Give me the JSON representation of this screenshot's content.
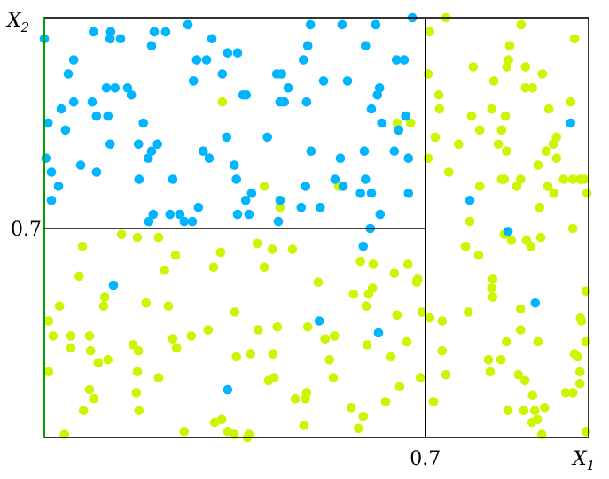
{
  "chart_data": {
    "type": "scatter",
    "title": "",
    "xlabel": "X",
    "xlabel_sub": "1",
    "ylabel": "X",
    "ylabel_sub": "2",
    "xlim": [
      0,
      1
    ],
    "ylim": [
      0,
      1
    ],
    "grid": false,
    "x_ticks": [
      {
        "value": 0.7,
        "label": "0.7"
      }
    ],
    "y_ticks": [
      {
        "value": 0.7,
        "label": "0.7"
      }
    ],
    "splits": [
      {
        "axis": "x",
        "value": 0.7,
        "from": 0,
        "to": 1
      },
      {
        "axis": "y",
        "value": 0.7,
        "from": 0,
        "to": 0.7
      }
    ],
    "colors": {
      "axis_left": "#00a000",
      "frame": "#000000",
      "split": "#000000"
    },
    "series": [
      {
        "color": "#ccf500",
        "points": [
          [
            0.327,
            0.88
          ],
          [
            0.404,
            0.76
          ],
          [
            0.433,
            0.73
          ],
          [
            0.541,
            0.76
          ],
          [
            0.648,
            0.85
          ],
          [
            0.673,
            0.85
          ],
          [
            0.07,
            0.64
          ],
          [
            0.142,
            0.68
          ],
          [
            0.171,
            0.67
          ],
          [
            0.21,
            0.67
          ],
          [
            0.241,
            0.61
          ],
          [
            0.221,
            0.56
          ],
          [
            0.324,
            0.62
          ],
          [
            0.311,
            0.57
          ],
          [
            0.391,
            0.65
          ],
          [
            0.419,
            0.63
          ],
          [
            0.456,
            0.63
          ],
          [
            0.404,
            0.57
          ],
          [
            0.064,
            0.54
          ],
          [
            0.111,
            0.47
          ],
          [
            0.109,
            0.44
          ],
          [
            0.028,
            0.44
          ],
          [
            0.187,
            0.45
          ],
          [
            0.228,
            0.44
          ],
          [
            0.35,
            0.42
          ],
          [
            0.503,
            0.52
          ],
          [
            0.581,
            0.59
          ],
          [
            0.604,
            0.58
          ],
          [
            0.643,
            0.55
          ],
          [
            0.668,
            0.58
          ],
          [
            0.686,
            0.53
          ],
          [
            0.684,
            0.52
          ],
          [
            0.568,
            0.48
          ],
          [
            0.596,
            0.48
          ],
          [
            0.603,
            0.5
          ],
          [
            0.591,
            0.44
          ],
          [
            0.648,
            0.41
          ],
          [
            0.694,
            0.42
          ],
          [
            0.008,
            0.39
          ],
          [
            0.016,
            0.34
          ],
          [
            0.049,
            0.34
          ],
          [
            0.083,
            0.34
          ],
          [
            0.049,
            0.3
          ],
          [
            0.085,
            0.29
          ],
          [
            0.236,
            0.33
          ],
          [
            0.27,
            0.34
          ],
          [
            0.301,
            0.36
          ],
          [
            0.393,
            0.36
          ],
          [
            0.428,
            0.37
          ],
          [
            0.484,
            0.37
          ],
          [
            0.516,
            0.33
          ],
          [
            0.533,
            0.34
          ],
          [
            0.593,
            0.31
          ],
          [
            0.666,
            0.32
          ],
          [
            0.163,
            0.31
          ],
          [
            0.173,
            0.29
          ],
          [
            0.243,
            0.3
          ],
          [
            0.099,
            0.25
          ],
          [
            0.117,
            0.26
          ],
          [
            0.353,
            0.27
          ],
          [
            0.379,
            0.28
          ],
          [
            0.42,
            0.28
          ],
          [
            0.524,
            0.26
          ],
          [
            0.637,
            0.27
          ],
          [
            0.008,
            0.22
          ],
          [
            0.171,
            0.22
          ],
          [
            0.21,
            0.2
          ],
          [
            0.412,
            0.19
          ],
          [
            0.422,
            0.2
          ],
          [
            0.531,
            0.2
          ],
          [
            0.691,
            0.2
          ],
          [
            0.083,
            0.16
          ],
          [
            0.091,
            0.13
          ],
          [
            0.169,
            0.15
          ],
          [
            0.482,
            0.15
          ],
          [
            0.48,
            0.13
          ],
          [
            0.461,
            0.13
          ],
          [
            0.653,
            0.17
          ],
          [
            0.072,
            0.09
          ],
          [
            0.174,
            0.09
          ],
          [
            0.564,
            0.1
          ],
          [
            0.586,
            0.07
          ],
          [
            0.627,
            0.12
          ],
          [
            0.313,
            0.05
          ],
          [
            0.326,
            0.06
          ],
          [
            0.477,
            0.04
          ],
          [
            0.577,
            0.03
          ],
          [
            0.037,
            0.01
          ],
          [
            0.257,
            0.02
          ],
          [
            0.337,
            0.02
          ],
          [
            0.349,
            0.01
          ],
          [
            0.376,
            0.01
          ],
          [
            0.373,
            0.0
          ],
          [
            0.738,
            1.0
          ],
          [
            0.876,
            0.99
          ],
          [
            0.708,
            0.98
          ],
          [
            0.974,
            0.97
          ],
          [
            0.855,
            0.96
          ],
          [
            0.788,
            0.93
          ],
          [
            0.85,
            0.93
          ],
          [
            0.853,
            0.94
          ],
          [
            0.884,
            0.93
          ],
          [
            0.915,
            0.92
          ],
          [
            0.826,
            0.91
          ],
          [
            0.884,
            0.9
          ],
          [
            0.897,
            0.9
          ],
          [
            0.705,
            0.92
          ],
          [
            0.725,
            0.89
          ],
          [
            0.726,
            0.87
          ],
          [
            0.822,
            0.87
          ],
          [
            0.785,
            0.86
          ],
          [
            0.847,
            0.86
          ],
          [
            0.927,
            0.87
          ],
          [
            0.967,
            0.88
          ],
          [
            0.718,
            0.83
          ],
          [
            0.8,
            0.84
          ],
          [
            0.84,
            0.84
          ],
          [
            0.761,
            0.82
          ],
          [
            0.834,
            0.82
          ],
          [
            0.849,
            0.81
          ],
          [
            0.941,
            0.83
          ],
          [
            0.935,
            0.82
          ],
          [
            0.922,
            0.81
          ],
          [
            0.941,
            0.8
          ],
          [
            0.907,
            0.79
          ],
          [
            0.705,
            0.8
          ],
          [
            0.743,
            0.78
          ],
          [
            0.8,
            0.76
          ],
          [
            0.84,
            0.77
          ],
          [
            0.845,
            0.77
          ],
          [
            0.875,
            0.77
          ],
          [
            0.868,
            0.76
          ],
          [
            0.925,
            0.76
          ],
          [
            0.936,
            0.75
          ],
          [
            0.954,
            0.77
          ],
          [
            0.971,
            0.77
          ],
          [
            0.984,
            0.77
          ],
          [
            0.992,
            0.77
          ],
          [
            0.997,
            0.75
          ],
          [
            0.91,
            0.73
          ],
          [
            0.782,
            0.71
          ],
          [
            0.971,
            0.7
          ],
          [
            0.845,
            0.68
          ],
          [
            0.858,
            0.66
          ],
          [
            0.886,
            0.66
          ],
          [
            0.894,
            0.64
          ],
          [
            0.912,
            0.67
          ],
          [
            0.774,
            0.64
          ],
          [
            0.798,
            0.61
          ],
          [
            0.824,
            0.53
          ],
          [
            0.822,
            0.5
          ],
          [
            0.824,
            0.47
          ],
          [
            0.779,
            0.42
          ],
          [
            0.708,
            0.4
          ],
          [
            0.731,
            0.39
          ],
          [
            0.875,
            0.43
          ],
          [
            0.995,
            0.49
          ],
          [
            0.985,
            0.4
          ],
          [
            0.987,
            0.39
          ],
          [
            0.875,
            0.36
          ],
          [
            0.995,
            0.32
          ],
          [
            0.731,
            0.29
          ],
          [
            0.849,
            0.32
          ],
          [
            0.907,
            0.32
          ],
          [
            0.816,
            0.26
          ],
          [
            0.839,
            0.26
          ],
          [
            0.738,
            0.21
          ],
          [
            0.819,
            0.22
          ],
          [
            0.871,
            0.21
          ],
          [
            0.883,
            0.19
          ],
          [
            0.974,
            0.28
          ],
          [
            0.98,
            0.27
          ],
          [
            0.984,
            0.22
          ],
          [
            0.984,
            0.18
          ],
          [
            0.958,
            0.15
          ],
          [
            0.971,
            0.15
          ],
          [
            0.897,
            0.14
          ],
          [
            0.715,
            0.12
          ],
          [
            0.852,
            0.09
          ],
          [
            0.881,
            0.09
          ],
          [
            0.901,
            0.09
          ],
          [
            0.919,
            0.1
          ],
          [
            0.906,
            0.06
          ],
          [
            0.896,
            0.05
          ],
          [
            0.914,
            0.01
          ],
          [
            0.995,
            0.02
          ]
        ]
      },
      {
        "color": "#00b4ff",
        "points": [
          [
            0.0,
            0.97
          ],
          [
            0.09,
            0.98
          ],
          [
            0.122,
            0.98
          ],
          [
            0.121,
            0.97
          ],
          [
            0.14,
            0.97
          ],
          [
            0.202,
            0.98
          ],
          [
            0.223,
            0.98
          ],
          [
            0.197,
            0.96
          ],
          [
            0.264,
            0.99
          ],
          [
            0.308,
            0.97
          ],
          [
            0.337,
            0.95
          ],
          [
            0.355,
            0.95
          ],
          [
            0.28,
            0.94
          ],
          [
            0.298,
            0.94
          ],
          [
            0.327,
            0.92
          ],
          [
            0.274,
            0.91
          ],
          [
            0.489,
            0.99
          ],
          [
            0.547,
            0.99
          ],
          [
            0.609,
            0.99
          ],
          [
            0.676,
            1.0
          ],
          [
            0.484,
            0.96
          ],
          [
            0.476,
            0.94
          ],
          [
            0.59,
            0.96
          ],
          [
            0.647,
            0.94
          ],
          [
            0.661,
            0.94
          ],
          [
            0.054,
            0.94
          ],
          [
            0.044,
            0.92
          ],
          [
            0.114,
            0.9
          ],
          [
            0.13,
            0.9
          ],
          [
            0.153,
            0.9
          ],
          [
            0.16,
            0.89
          ],
          [
            0.427,
            0.92
          ],
          [
            0.436,
            0.92
          ],
          [
            0.448,
            0.9
          ],
          [
            0.513,
            0.91
          ],
          [
            0.557,
            0.91
          ],
          [
            0.616,
            0.9
          ],
          [
            0.612,
            0.89
          ],
          [
            0.031,
            0.87
          ],
          [
            0.054,
            0.88
          ],
          [
            0.088,
            0.88
          ],
          [
            0.096,
            0.86
          ],
          [
            0.117,
            0.86
          ],
          [
            0.007,
            0.85
          ],
          [
            0.039,
            0.84
          ],
          [
            0.182,
            0.85
          ],
          [
            0.365,
            0.89
          ],
          [
            0.371,
            0.89
          ],
          [
            0.433,
            0.88
          ],
          [
            0.441,
            0.88
          ],
          [
            0.482,
            0.88
          ],
          [
            0.601,
            0.87
          ],
          [
            0.664,
            0.86
          ],
          [
            0.62,
            0.85
          ],
          [
            0.651,
            0.84
          ],
          [
            0.121,
            0.82
          ],
          [
            0.173,
            0.82
          ],
          [
            0.197,
            0.81
          ],
          [
            0.191,
            0.8
          ],
          [
            0.208,
            0.82
          ],
          [
            0.335,
            0.83
          ],
          [
            0.41,
            0.83
          ],
          [
            0.49,
            0.81
          ],
          [
            0.588,
            0.81
          ],
          [
            0.643,
            0.81
          ],
          [
            0.669,
            0.8
          ],
          [
            0.544,
            0.8
          ],
          [
            0.003,
            0.8
          ],
          [
            0.013,
            0.78
          ],
          [
            0.067,
            0.79
          ],
          [
            0.096,
            0.78
          ],
          [
            0.292,
            0.81
          ],
          [
            0.303,
            0.8
          ],
          [
            0.349,
            0.79
          ],
          [
            0.236,
            0.77
          ],
          [
            0.174,
            0.77
          ],
          [
            0.353,
            0.77
          ],
          [
            0.026,
            0.76
          ],
          [
            0.013,
            0.74
          ],
          [
            0.534,
            0.77
          ],
          [
            0.549,
            0.76
          ],
          [
            0.59,
            0.77
          ],
          [
            0.581,
            0.75
          ],
          [
            0.601,
            0.75
          ],
          [
            0.669,
            0.75
          ],
          [
            0.48,
            0.76
          ],
          [
            0.37,
            0.74
          ],
          [
            0.381,
            0.75
          ],
          [
            0.433,
            0.74
          ],
          [
            0.472,
            0.73
          ],
          [
            0.507,
            0.73
          ],
          [
            0.283,
            0.73
          ],
          [
            0.2,
            0.72
          ],
          [
            0.231,
            0.72
          ],
          [
            0.249,
            0.72
          ],
          [
            0.192,
            0.71
          ],
          [
            0.257,
            0.71
          ],
          [
            0.272,
            0.71
          ],
          [
            0.355,
            0.72
          ],
          [
            0.376,
            0.72
          ],
          [
            0.43,
            0.71
          ],
          [
            0.617,
            0.72
          ],
          [
            0.599,
            0.7
          ],
          [
            0.967,
            0.85
          ],
          [
            0.782,
            0.74
          ],
          [
            0.852,
            0.69
          ],
          [
            0.902,
            0.45
          ],
          [
            0.586,
            0.64
          ],
          [
            0.127,
            0.51
          ],
          [
            0.505,
            0.39
          ],
          [
            0.614,
            0.35
          ],
          [
            0.337,
            0.16
          ]
        ]
      }
    ]
  }
}
